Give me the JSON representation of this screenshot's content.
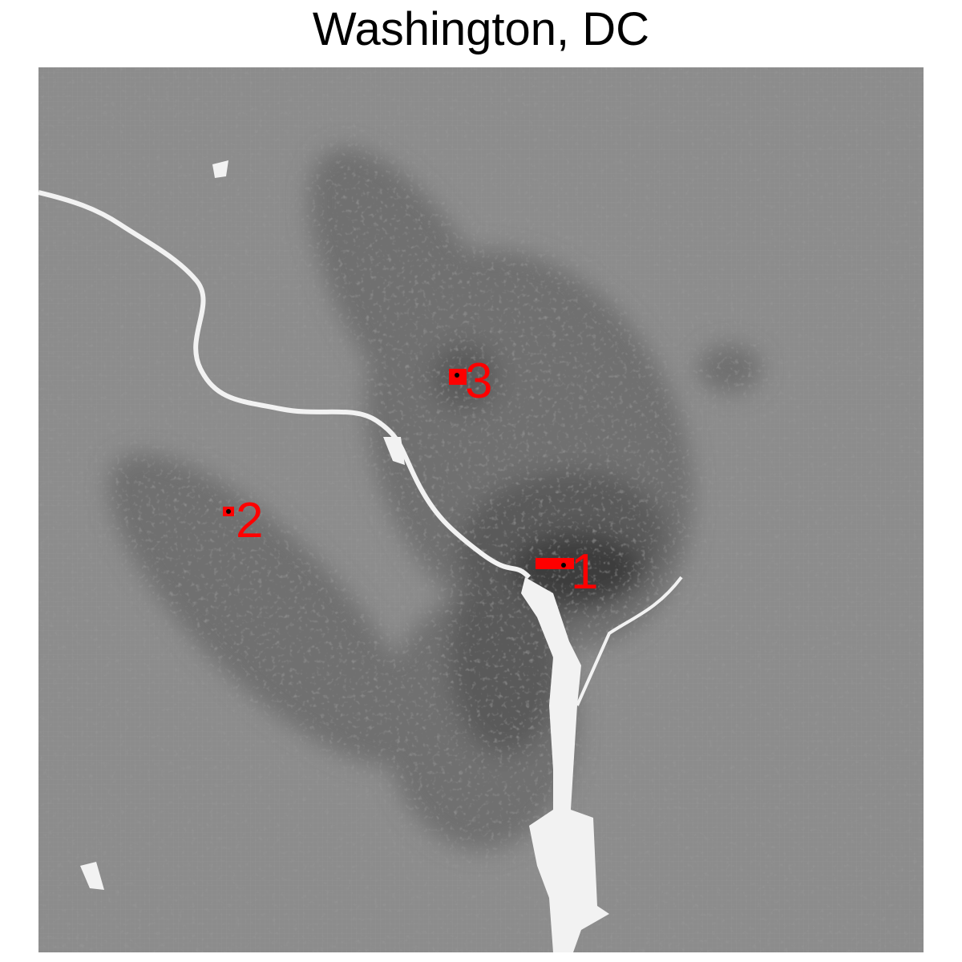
{
  "title": "Washington, DC",
  "colors": {
    "background_land": "#8c8c8c",
    "urban_light": "#707070",
    "urban_mid": "#5a5a5a",
    "urban_dark": "#3e3e3e",
    "water": "#f2f2f2",
    "marker": "#ff0000",
    "marker_dot": "#000000"
  },
  "markers": [
    {
      "label": "1"
    },
    {
      "label": "2"
    },
    {
      "label": "3"
    }
  ]
}
